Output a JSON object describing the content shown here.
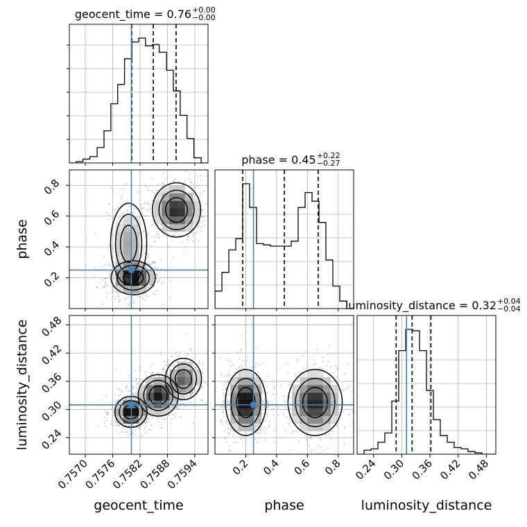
{
  "chart_data": {
    "type": "corner",
    "parameters": [
      "geocent_time",
      "phase",
      "luminosity_distance"
    ],
    "truths": {
      "geocent_time": 0.75801,
      "phase": 0.25,
      "luminosity_distance": 0.31
    },
    "grid": true,
    "colors": {
      "truth": "#4682b4",
      "hist": "#000000",
      "grid": "#b0b0b0",
      "points": "#999999"
    },
    "panels": {
      "geocent_time": {
        "title_main": "geocent_time = 0.76",
        "title_plus": "+0.00",
        "title_minus": "−0.00",
        "xlim": [
          0.75665,
          0.75969
        ],
        "quantiles": [
          0.75802,
          0.75849,
          0.75899
        ],
        "hist_edges": [
          0.75665,
          0.7568,
          0.75695,
          0.7571,
          0.75726,
          0.75741,
          0.75756,
          0.75771,
          0.75786,
          0.75802,
          0.75817,
          0.75832,
          0.75847,
          0.75862,
          0.75878,
          0.75893,
          0.75908,
          0.75923,
          0.75938,
          0.75954,
          0.75969
        ],
        "hist_counts": [
          0.0,
          0.01,
          0.03,
          0.05,
          0.12,
          0.25,
          0.46,
          0.61,
          0.81,
          0.94,
          0.97,
          0.91,
          0.92,
          0.86,
          0.72,
          0.56,
          0.37,
          0.19,
          0.04,
          0.0
        ],
        "yticks": [
          0.2,
          0.4,
          0.6,
          0.8,
          1.0
        ]
      },
      "phase": {
        "title_main": "phase = 0.45",
        "title_plus": "+0.22",
        "title_minus": "−0.27",
        "xlim": [
          0.0,
          0.9
        ],
        "quantiles": [
          0.18,
          0.45,
          0.67
        ],
        "hist_edges": [
          0.0,
          0.045,
          0.09,
          0.135,
          0.18,
          0.225,
          0.27,
          0.315,
          0.36,
          0.405,
          0.45,
          0.495,
          0.54,
          0.585,
          0.63,
          0.675,
          0.72,
          0.765,
          0.81,
          0.855,
          0.9
        ],
        "hist_counts": [
          0.14,
          0.29,
          0.47,
          0.56,
          1.0,
          0.81,
          0.52,
          0.51,
          0.5,
          0.5,
          0.5,
          0.54,
          0.81,
          0.93,
          0.86,
          0.69,
          0.39,
          0.18,
          0.06,
          0.0
        ]
      },
      "luminosity_distance": {
        "title_main": "luminosity_distance = 0.32",
        "title_plus": "+0.04",
        "title_minus": "−0.04",
        "xlim": [
          0.205,
          0.5
        ],
        "quantiles": [
          0.288,
          0.322,
          0.362
        ],
        "hist_edges": [
          0.205,
          0.2198,
          0.2345,
          0.2493,
          0.264,
          0.2788,
          0.2935,
          0.3083,
          0.323,
          0.3378,
          0.3525,
          0.3673,
          0.382,
          0.3968,
          0.4115,
          0.4263,
          0.441,
          0.4558,
          0.4705,
          0.4853,
          0.5
        ],
        "hist_counts": [
          0.0,
          0.03,
          0.04,
          0.09,
          0.16,
          0.4,
          0.78,
          0.94,
          0.93,
          0.78,
          0.48,
          0.26,
          0.14,
          0.09,
          0.05,
          0.04,
          0.02,
          0.01,
          0.0,
          0.0
        ]
      }
    },
    "xaxis": {
      "geocent_time": {
        "label": "geocent_time",
        "ticks": [
          0.757,
          0.7576,
          0.7582,
          0.7588,
          0.7594
        ],
        "tick_labels": [
          "0.7570",
          "0.7576",
          "0.7582",
          "0.7588",
          "0.7594"
        ]
      },
      "phase": {
        "label": "phase",
        "ticks": [
          0.2,
          0.4,
          0.6,
          0.8
        ],
        "tick_labels": [
          "0.2",
          "0.4",
          "0.6",
          "0.8"
        ]
      },
      "luminosity_distance": {
        "label": "luminosity_distance",
        "ticks": [
          0.24,
          0.3,
          0.36,
          0.42,
          0.48
        ],
        "tick_labels": [
          "0.24",
          "0.30",
          "0.36",
          "0.42",
          "0.48"
        ]
      }
    },
    "yaxis": {
      "phase": {
        "label": "phase",
        "ticks": [
          0.2,
          0.4,
          0.6,
          0.8
        ],
        "tick_labels": [
          "0.2",
          "0.4",
          "0.6",
          "0.8"
        ]
      },
      "luminosity_distance": {
        "label": "luminosity_distance",
        "ticks": [
          0.24,
          0.3,
          0.36,
          0.42,
          0.48
        ],
        "tick_labels": [
          "0.24",
          "0.30",
          "0.36",
          "0.42",
          "0.48"
        ]
      }
    },
    "density_blobs": {
      "geocent_time_vs_phase": [
        {
          "cx": 0.75805,
          "cy": 0.2,
          "sx": 0.00022,
          "sy": 0.05,
          "w": 1.0
        },
        {
          "cx": 0.759,
          "cy": 0.64,
          "sx": 0.00024,
          "sy": 0.08,
          "w": 0.85
        },
        {
          "cx": 0.75795,
          "cy": 0.42,
          "sx": 0.00018,
          "sy": 0.12,
          "w": 0.35
        }
      ],
      "geocent_time_vs_luminosity_distance": [
        {
          "cx": 0.758,
          "cy": 0.295,
          "sx": 0.00016,
          "sy": 0.015,
          "w": 1.0
        },
        {
          "cx": 0.7586,
          "cy": 0.33,
          "sx": 0.0002,
          "sy": 0.02,
          "w": 0.9
        },
        {
          "cx": 0.75915,
          "cy": 0.365,
          "sx": 0.00018,
          "sy": 0.02,
          "w": 0.6
        }
      ],
      "phase_vs_luminosity_distance": [
        {
          "cx": 0.2,
          "cy": 0.315,
          "sx": 0.06,
          "sy": 0.032,
          "w": 1.0
        },
        {
          "cx": 0.65,
          "cy": 0.315,
          "sx": 0.08,
          "sy": 0.032,
          "w": 0.85
        }
      ]
    }
  }
}
